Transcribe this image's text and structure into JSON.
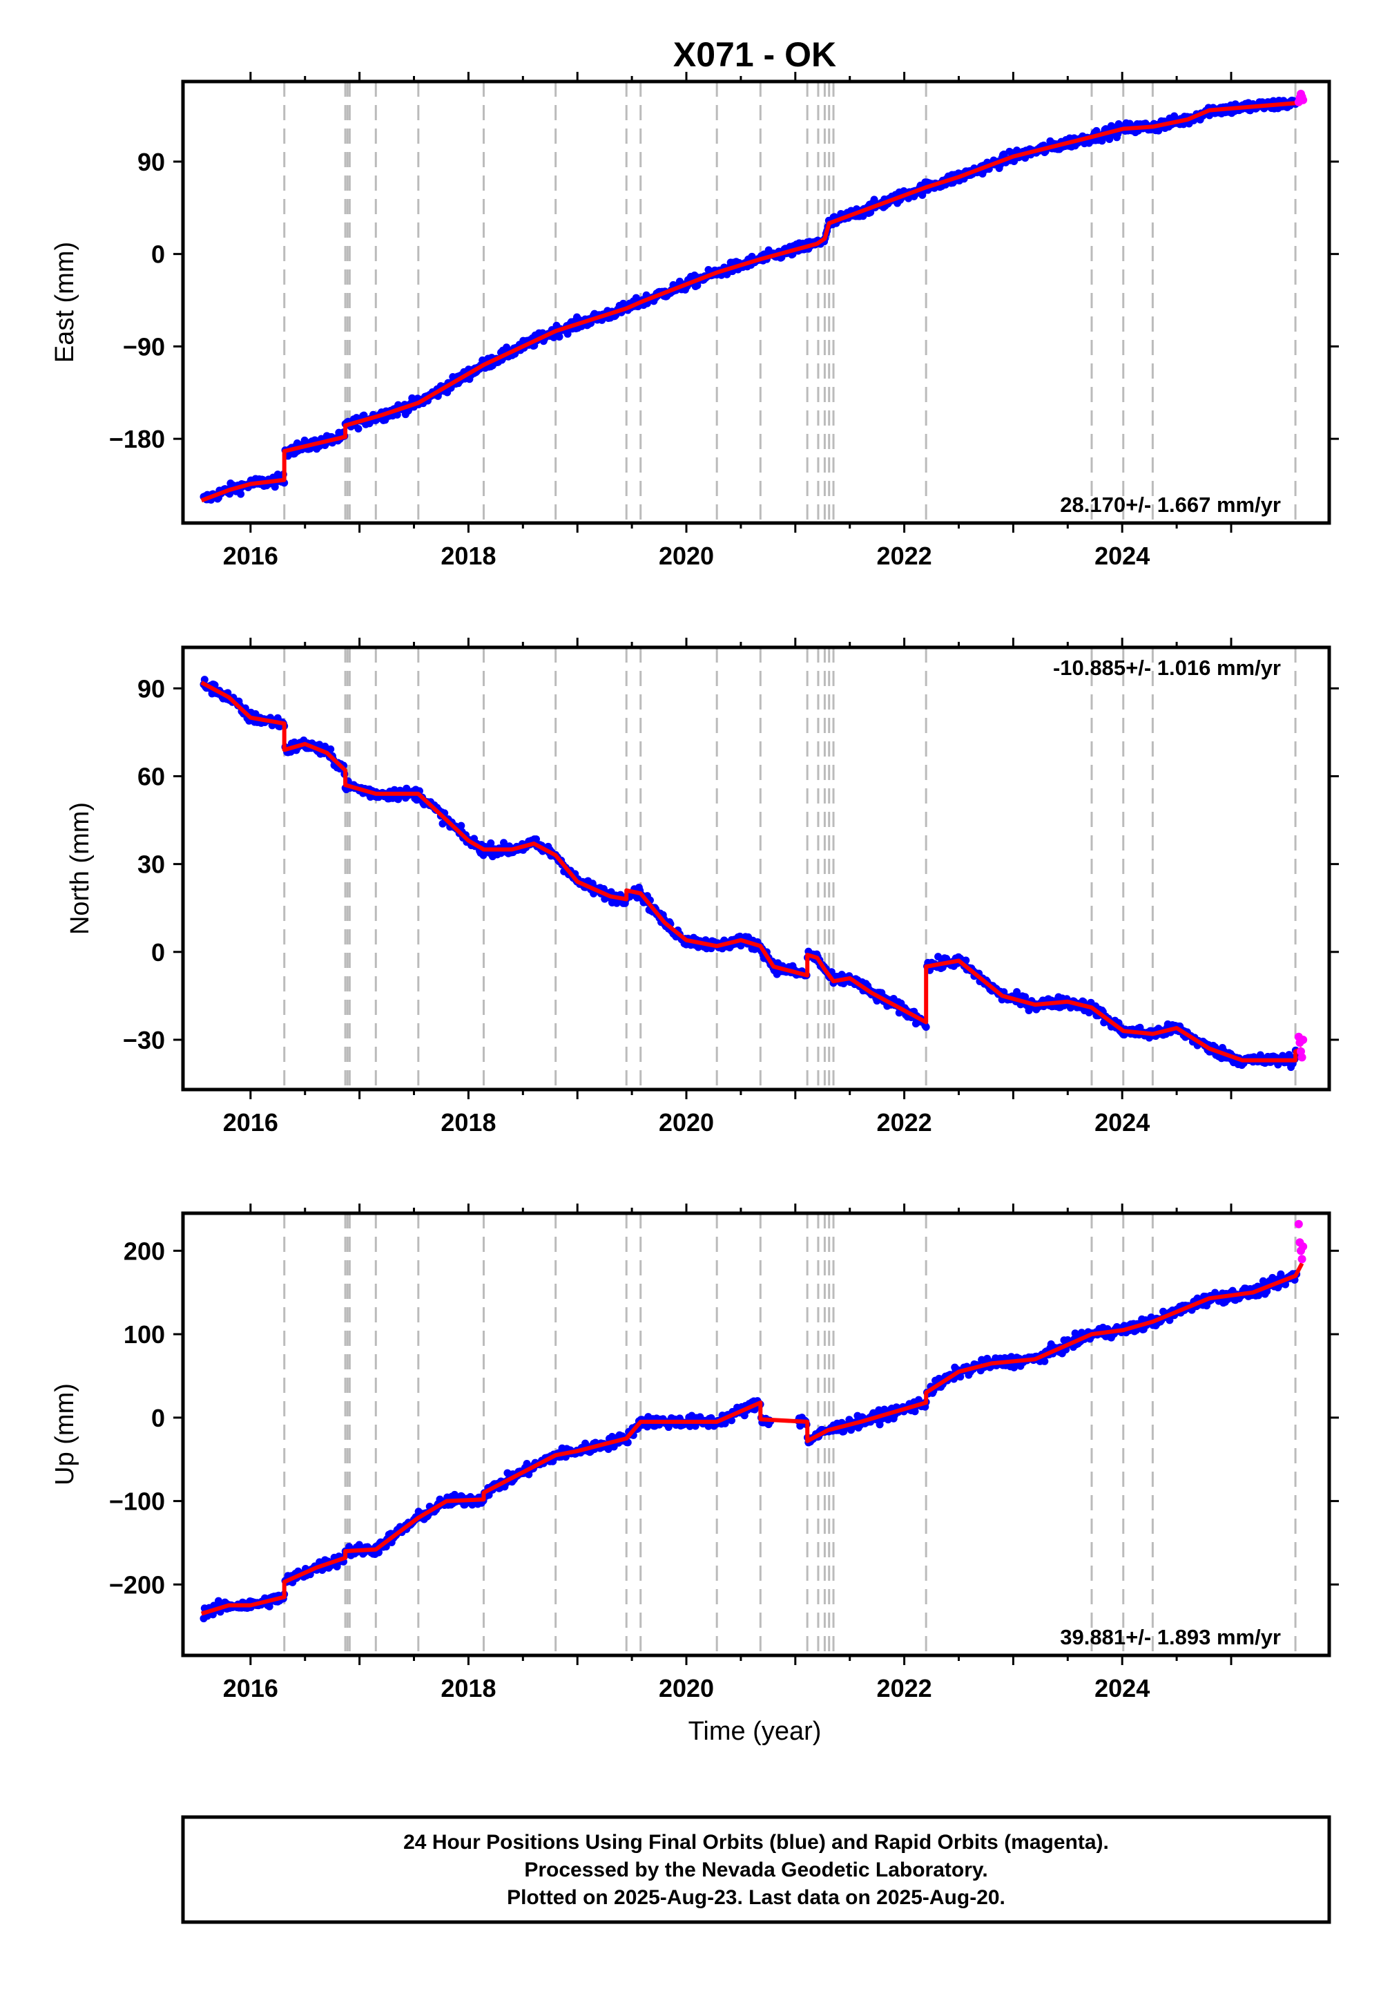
{
  "chart_data": {
    "type": "scatter",
    "title": "X071 - OK",
    "xlabel": "Time (year)",
    "xticks": [
      "2016",
      "2018",
      "2020",
      "2022",
      "2024"
    ],
    "xlim": [
      2015.38,
      2025.9
    ],
    "event_lines": [
      2016.31,
      2016.87,
      2016.89,
      2016.91,
      2017.15,
      2017.54,
      2018.14,
      2018.8,
      2019.45,
      2019.58,
      2020.28,
      2020.68,
      2021.11,
      2021.21,
      2021.27,
      2021.31,
      2021.35,
      2022.2,
      2023.72,
      2024.01,
      2024.28,
      2025.59
    ],
    "colors": {
      "final": "#0000ff",
      "rapid": "#ff00ff",
      "model": "#ff0000",
      "events": "#bbbbbb"
    },
    "footer": [
      "24 Hour Positions Using Final Orbits (blue) and Rapid Orbits (magenta).",
      "Processed by the Nevada Geodetic Laboratory.",
      "Plotted on 2025-Aug-23. Last data on 2025-Aug-20."
    ],
    "panels": [
      {
        "ylabel": "East (mm)",
        "ylim": [
          -262,
          168
        ],
        "yticks": [
          90,
          0,
          -90,
          -180
        ],
        "yticklabels": [
          "90",
          "0",
          "−90",
          "−180"
        ],
        "rate": "28.170+/- 1.667 mm/yr",
        "rate_position": "bottom-right",
        "model": [
          [
            2015.55,
            -240
          ],
          [
            2015.8,
            -230
          ],
          [
            2016.0,
            -224
          ],
          [
            2016.31,
            -220
          ],
          [
            2016.31,
            -192
          ],
          [
            2016.87,
            -178
          ],
          [
            2016.87,
            -167
          ],
          [
            2017.2,
            -157
          ],
          [
            2017.54,
            -145
          ],
          [
            2018.14,
            -108
          ],
          [
            2018.8,
            -75
          ],
          [
            2019.45,
            -53
          ],
          [
            2019.6,
            -46
          ],
          [
            2020.28,
            -18
          ],
          [
            2020.68,
            -5
          ],
          [
            2021.2,
            10
          ],
          [
            2021.27,
            15
          ],
          [
            2021.31,
            30
          ],
          [
            2022.2,
            65
          ],
          [
            2022.5,
            75
          ],
          [
            2023.0,
            95
          ],
          [
            2023.72,
            114
          ],
          [
            2024.01,
            122
          ],
          [
            2024.28,
            124
          ],
          [
            2024.6,
            131
          ],
          [
            2024.8,
            140
          ],
          [
            2025.59,
            147
          ],
          [
            2025.65,
            150
          ]
        ],
        "rapid": [
          [
            2025.62,
            148
          ],
          [
            2025.63,
            152
          ],
          [
            2025.64,
            156
          ],
          [
            2025.65,
            153
          ],
          [
            2025.66,
            150
          ]
        ]
      },
      {
        "ylabel": "North (mm)",
        "ylim": [
          -47,
          104
        ],
        "yticks": [
          90,
          60,
          30,
          0,
          -30
        ],
        "yticklabels": [
          "90",
          "60",
          "30",
          "0",
          "−30"
        ],
        "rate": "-10.885+/- 1.016 mm/yr",
        "rate_position": "top-right",
        "model": [
          [
            2015.55,
            92
          ],
          [
            2015.8,
            87
          ],
          [
            2016.0,
            80
          ],
          [
            2016.31,
            78
          ],
          [
            2016.31,
            69
          ],
          [
            2016.5,
            71
          ],
          [
            2016.7,
            68
          ],
          [
            2016.87,
            62
          ],
          [
            2016.87,
            57
          ],
          [
            2017.15,
            54
          ],
          [
            2017.54,
            54
          ],
          [
            2017.8,
            45
          ],
          [
            2018.0,
            38
          ],
          [
            2018.14,
            35
          ],
          [
            2018.4,
            35
          ],
          [
            2018.6,
            37
          ],
          [
            2018.8,
            33
          ],
          [
            2019.0,
            24
          ],
          [
            2019.3,
            19
          ],
          [
            2019.45,
            18
          ],
          [
            2019.45,
            21
          ],
          [
            2019.58,
            20
          ],
          [
            2019.8,
            10
          ],
          [
            2020.0,
            4
          ],
          [
            2020.28,
            2
          ],
          [
            2020.5,
            4
          ],
          [
            2020.68,
            2
          ],
          [
            2020.8,
            -5
          ],
          [
            2021.11,
            -8
          ],
          [
            2021.11,
            -1
          ],
          [
            2021.2,
            -2
          ],
          [
            2021.27,
            -6
          ],
          [
            2021.35,
            -10
          ],
          [
            2021.5,
            -9
          ],
          [
            2021.7,
            -14
          ],
          [
            2022.2,
            -24
          ],
          [
            2022.2,
            -5
          ],
          [
            2022.5,
            -3
          ],
          [
            2022.7,
            -9
          ],
          [
            2022.9,
            -15
          ],
          [
            2023.2,
            -18
          ],
          [
            2023.5,
            -17
          ],
          [
            2023.72,
            -19
          ],
          [
            2024.01,
            -27
          ],
          [
            2024.28,
            -28
          ],
          [
            2024.5,
            -26
          ],
          [
            2024.8,
            -33
          ],
          [
            2025.1,
            -37
          ],
          [
            2025.59,
            -37
          ],
          [
            2025.59,
            -34
          ],
          [
            2025.65,
            -33
          ]
        ],
        "rapid": [
          [
            2025.62,
            -29
          ],
          [
            2025.63,
            -31
          ],
          [
            2025.64,
            -34
          ],
          [
            2025.65,
            -36
          ],
          [
            2025.66,
            -30
          ]
        ]
      },
      {
        "ylabel": "Up (mm)",
        "ylim": [
          -285,
          245
        ],
        "yticks": [
          200,
          100,
          0,
          -100,
          -200
        ],
        "yticklabels": [
          "200",
          "100",
          "0",
          "−100",
          "−200"
        ],
        "rate": "39.881+/- 1.893 mm/yr",
        "rate_position": "bottom-right",
        "model": [
          [
            2015.55,
            -235
          ],
          [
            2015.8,
            -225
          ],
          [
            2016.0,
            -225
          ],
          [
            2016.31,
            -215
          ],
          [
            2016.31,
            -197
          ],
          [
            2016.6,
            -180
          ],
          [
            2016.87,
            -168
          ],
          [
            2016.87,
            -160
          ],
          [
            2017.15,
            -158
          ],
          [
            2017.54,
            -120
          ],
          [
            2017.8,
            -100
          ],
          [
            2018.14,
            -98
          ],
          [
            2018.14,
            -90
          ],
          [
            2018.8,
            -45
          ],
          [
            2019.0,
            -40
          ],
          [
            2019.45,
            -25
          ],
          [
            2019.58,
            -5
          ],
          [
            2020.28,
            -5
          ],
          [
            2020.68,
            18
          ],
          [
            2020.68,
            -2
          ],
          [
            2021.11,
            -5
          ],
          [
            2021.11,
            -28
          ],
          [
            2021.3,
            -15
          ],
          [
            2021.6,
            -5
          ],
          [
            2022.2,
            18
          ],
          [
            2022.2,
            30
          ],
          [
            2022.5,
            55
          ],
          [
            2022.8,
            65
          ],
          [
            2023.2,
            70
          ],
          [
            2023.72,
            100
          ],
          [
            2024.01,
            105
          ],
          [
            2024.28,
            115
          ],
          [
            2024.8,
            143
          ],
          [
            2025.2,
            150
          ],
          [
            2025.59,
            170
          ],
          [
            2025.65,
            185
          ]
        ],
        "rapid": [
          [
            2025.62,
            232
          ],
          [
            2025.63,
            210
          ],
          [
            2025.64,
            200
          ],
          [
            2025.65,
            190
          ],
          [
            2025.66,
            205
          ]
        ]
      }
    ]
  }
}
